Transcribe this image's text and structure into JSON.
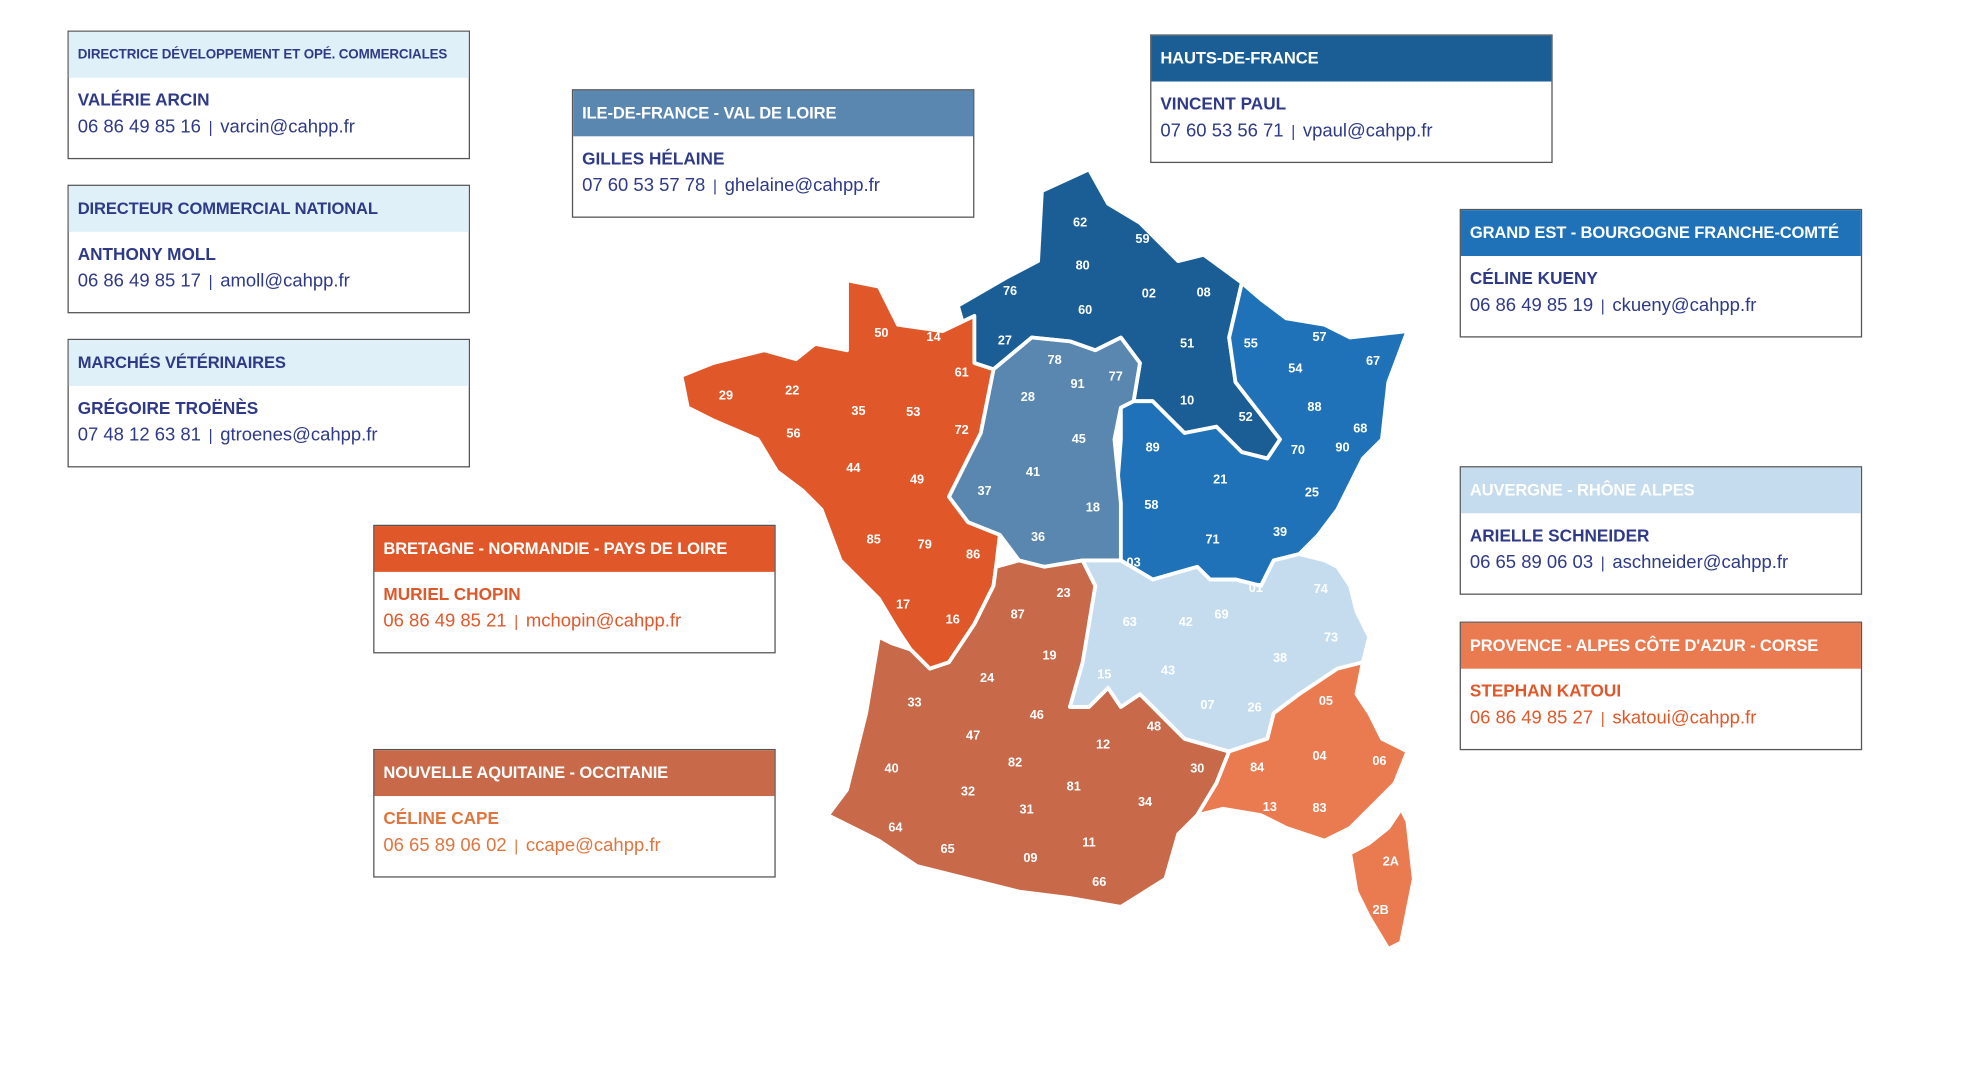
{
  "cards": [
    {
      "id": "direction",
      "header": "DIRECTRICE DÉVELOPPEMENT ET OPÉ. COMMERCIALES",
      "name": "VALÉRIE ARCIN",
      "phone": "06 86 49 85 16",
      "email": "varcin@cahpp.fr",
      "header_bg": "#dff0f8",
      "header_color": "#2e3a87",
      "text_color": "#2e3a87"
    },
    {
      "id": "national",
      "header": "DIRECTEUR COMMERCIAL NATIONAL",
      "name": "ANTHONY MOLL",
      "phone": "06 86 49 85 17",
      "email": "amoll@cahpp.fr",
      "header_bg": "#dff0f8",
      "header_color": "#2e3a87",
      "text_color": "#2e3a87"
    },
    {
      "id": "veterinaires",
      "header": "MARCHÉS VÉTÉRINAIRES",
      "name": "GRÉGOIRE TROËNÈS",
      "phone": "07 48 12 63 81",
      "email": "gtroenes@cahpp.fr",
      "header_bg": "#dff0f8",
      "header_color": "#2e3a87",
      "text_color": "#2e3a87"
    },
    {
      "id": "idf",
      "header": "ILE-DE-FRANCE - VAL DE LOIRE",
      "name": "GILLES HÉLAINE",
      "phone": "07 60 53 57 78",
      "email": "ghelaine@cahpp.fr",
      "header_bg": "#5a87b0",
      "header_color": "#ffffff",
      "text_color": "#2e3a87"
    },
    {
      "id": "hauts",
      "header": "HAUTS-DE-FRANCE",
      "name": "VINCENT PAUL",
      "phone": "07 60 53 56 71",
      "email": "vpaul@cahpp.fr",
      "header_bg": "#1b5e96",
      "header_color": "#ffffff",
      "text_color": "#2e3a87"
    },
    {
      "id": "grandest",
      "header": "GRAND EST - BOURGOGNE FRANCHE-COMTÉ",
      "name": "CÉLINE KUENY",
      "phone": "06 86 49 85 19",
      "email": "ckueny@cahpp.fr",
      "header_bg": "#1f72b8",
      "header_color": "#ffffff",
      "text_color": "#2e3a87"
    },
    {
      "id": "auvergne",
      "header": "AUVERGNE - RHÔNE ALPES",
      "name": "ARIELLE SCHNEIDER",
      "phone": "06 65 89 06 03",
      "email": "aschneider@cahpp.fr",
      "header_bg": "#c5dcef",
      "header_color": "#ffffff",
      "text_color": "#2e3a87"
    },
    {
      "id": "paca",
      "header": "PROVENCE - ALPES CÔTE D'AZUR - CORSE",
      "name": "STEPHAN KATOUI",
      "phone": "06 86 49 85 27",
      "email": "skatoui@cahpp.fr",
      "header_bg": "#ea7a4f",
      "header_color": "#ffffff",
      "text_color": "#e0582a"
    },
    {
      "id": "bretagne",
      "header": "BRETAGNE - NORMANDIE - PAYS DE LOIRE",
      "name": "MURIEL CHOPIN",
      "phone": "06 86 49 85 21",
      "email": "mchopin@cahpp.fr",
      "header_bg": "#e0582a",
      "header_color": "#ffffff",
      "text_color": "#e0582a"
    },
    {
      "id": "aquitaine",
      "header": "NOUVELLE AQUITAINE - OCCITANIE",
      "name": "CÉLINE CAPE",
      "phone": "06 65 89 06 02",
      "email": "ccape@cahpp.fr",
      "header_bg": "#c8694a",
      "header_color": "#ffffff",
      "text_color": "#e0753f"
    }
  ],
  "map": {
    "regions": [
      {
        "id": "hauts",
        "color": "#1b5e96",
        "departments": [
          "62",
          "59",
          "80",
          "76",
          "60",
          "02",
          "08",
          "27",
          "51",
          "10",
          "52"
        ]
      },
      {
        "id": "grandest",
        "color": "#1f72b8",
        "departments": [
          "55",
          "57",
          "67",
          "54",
          "88",
          "68",
          "70",
          "90",
          "89",
          "21",
          "25",
          "58",
          "39",
          "71"
        ]
      },
      {
        "id": "idf",
        "color": "#5a87b0",
        "departments": [
          "78",
          "91",
          "77",
          "28",
          "45",
          "41",
          "37",
          "18",
          "36"
        ]
      },
      {
        "id": "bretagne",
        "color": "#e0582a",
        "departments": [
          "50",
          "14",
          "61",
          "29",
          "22",
          "35",
          "53",
          "72",
          "56",
          "44",
          "49",
          "85",
          "79",
          "86",
          "17",
          "16"
        ]
      },
      {
        "id": "aquitaine",
        "color": "#c8694a",
        "departments": [
          "23",
          "87",
          "19",
          "24",
          "33",
          "46",
          "47",
          "48",
          "12",
          "82",
          "30",
          "40",
          "81",
          "32",
          "34",
          "31",
          "64",
          "65",
          "11",
          "09",
          "66"
        ]
      },
      {
        "id": "auvergne",
        "color": "#c5dcef",
        "departments": [
          "03",
          "01",
          "74",
          "63",
          "42",
          "69",
          "73",
          "38",
          "15",
          "43",
          "07",
          "26"
        ]
      },
      {
        "id": "paca",
        "color": "#ea7a4f",
        "departments": [
          "05",
          "84",
          "04",
          "06",
          "13",
          "83",
          "2A",
          "2B"
        ]
      }
    ]
  }
}
